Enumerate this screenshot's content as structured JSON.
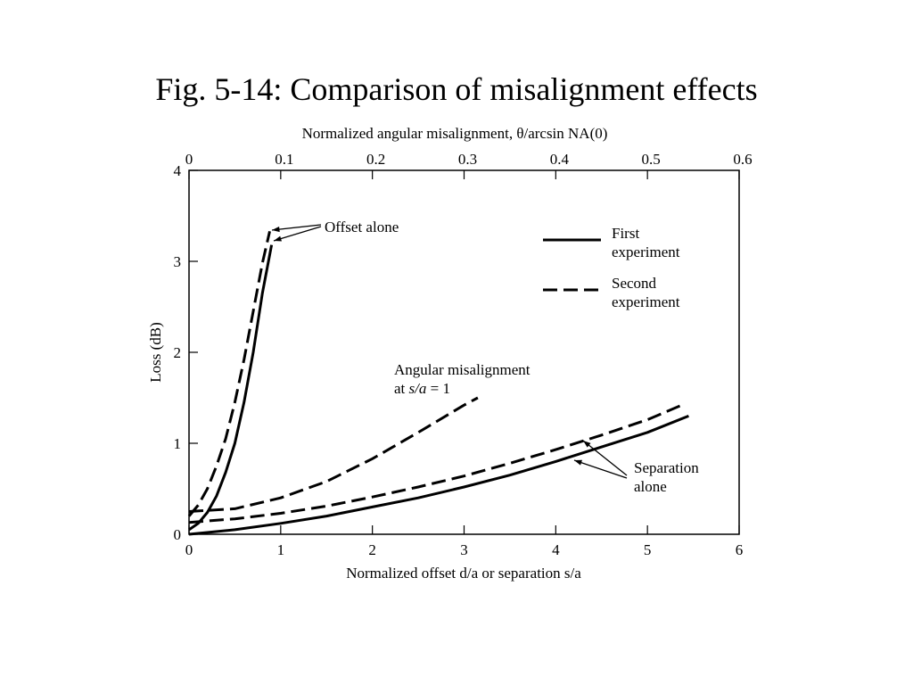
{
  "slide": {
    "title": "Fig. 5-14: Comparison of misalignment effects"
  },
  "chart_data": {
    "type": "line",
    "xlabel_bottom": "Normalized offset d/a or separation s/a",
    "xlabel_top": "Normalized angular misalignment, θ/arcsin NA(0)",
    "ylabel": "Loss (dB)",
    "xlim_bottom": [
      0,
      6
    ],
    "xlim_top": [
      0,
      0.6
    ],
    "ylim": [
      0,
      4
    ],
    "x_ticks_bottom": [
      "0",
      "1",
      "2",
      "3",
      "4",
      "5",
      "6"
    ],
    "x_ticks_top": [
      "0",
      "0.1",
      "0.2",
      "0.3",
      "0.4",
      "0.5",
      "0.6"
    ],
    "y_ticks": [
      "0",
      "1",
      "2",
      "3",
      "4"
    ],
    "grid": false,
    "legend": {
      "position": "top-right",
      "entries": [
        {
          "label_lines": [
            "First",
            "experiment"
          ],
          "style": "solid"
        },
        {
          "label_lines": [
            "Second",
            "experiment"
          ],
          "style": "dashed"
        }
      ]
    },
    "annotations": [
      {
        "id": "offset",
        "lines": [
          "Offset alone"
        ]
      },
      {
        "id": "angular",
        "lines": [
          "Angular misalignment",
          "at s/a = 1"
        ]
      },
      {
        "id": "separation",
        "lines": [
          "Separation",
          "alone"
        ]
      }
    ],
    "series": [
      {
        "group": "offset",
        "style": "solid",
        "points": [
          [
            0,
            0.05
          ],
          [
            0.1,
            0.12
          ],
          [
            0.2,
            0.24
          ],
          [
            0.3,
            0.42
          ],
          [
            0.4,
            0.68
          ],
          [
            0.5,
            1.0
          ],
          [
            0.6,
            1.45
          ],
          [
            0.7,
            2.0
          ],
          [
            0.8,
            2.65
          ],
          [
            0.9,
            3.18
          ]
        ]
      },
      {
        "group": "offset",
        "style": "dashed",
        "points": [
          [
            0,
            0.2
          ],
          [
            0.1,
            0.32
          ],
          [
            0.2,
            0.5
          ],
          [
            0.3,
            0.75
          ],
          [
            0.4,
            1.05
          ],
          [
            0.5,
            1.45
          ],
          [
            0.6,
            1.92
          ],
          [
            0.7,
            2.45
          ],
          [
            0.8,
            2.98
          ],
          [
            0.88,
            3.33
          ]
        ]
      },
      {
        "group": "angular",
        "style": "dashed",
        "points": [
          [
            0,
            0.25
          ],
          [
            0.5,
            0.28
          ],
          [
            1.0,
            0.4
          ],
          [
            1.5,
            0.58
          ],
          [
            2.0,
            0.83
          ],
          [
            2.5,
            1.12
          ],
          [
            3.0,
            1.42
          ],
          [
            3.15,
            1.5
          ]
        ]
      },
      {
        "group": "separation",
        "style": "solid",
        "points": [
          [
            0,
            0.0
          ],
          [
            0.5,
            0.05
          ],
          [
            1.0,
            0.12
          ],
          [
            1.5,
            0.2
          ],
          [
            2.0,
            0.3
          ],
          [
            2.5,
            0.4
          ],
          [
            3.0,
            0.52
          ],
          [
            3.5,
            0.65
          ],
          [
            4.0,
            0.8
          ],
          [
            4.5,
            0.96
          ],
          [
            5.0,
            1.12
          ],
          [
            5.45,
            1.3
          ]
        ]
      },
      {
        "group": "separation",
        "style": "dashed",
        "points": [
          [
            0,
            0.13
          ],
          [
            0.5,
            0.17
          ],
          [
            1.0,
            0.23
          ],
          [
            1.5,
            0.31
          ],
          [
            2.0,
            0.41
          ],
          [
            2.5,
            0.52
          ],
          [
            3.0,
            0.64
          ],
          [
            3.5,
            0.78
          ],
          [
            4.0,
            0.93
          ],
          [
            4.5,
            1.09
          ],
          [
            5.0,
            1.26
          ],
          [
            5.4,
            1.43
          ]
        ]
      }
    ]
  }
}
